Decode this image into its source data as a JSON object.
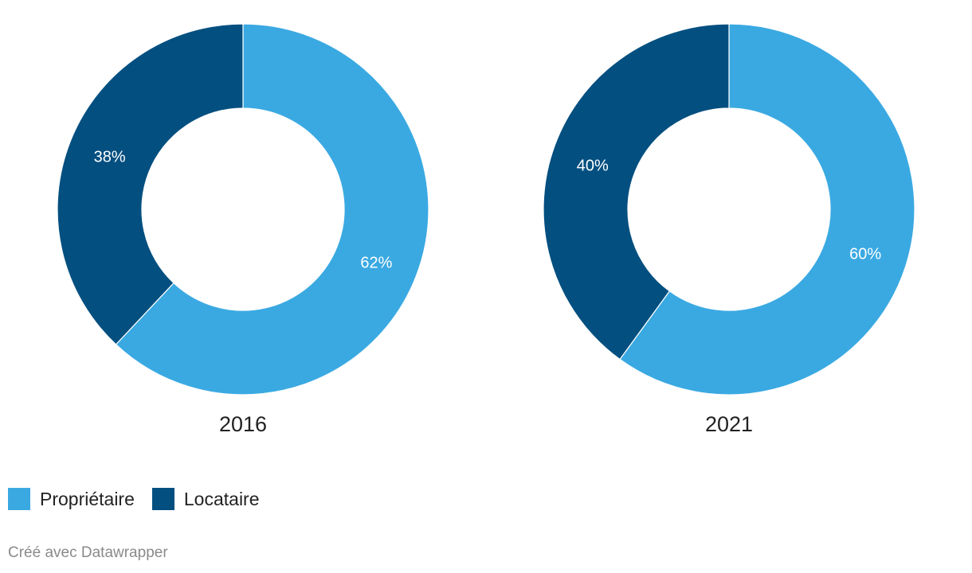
{
  "colors": {
    "proprietaire": "#3aa9e2",
    "locataire": "#034f80"
  },
  "chart_data": [
    {
      "type": "pie",
      "title": "2016",
      "slices": [
        {
          "label": "Propriétaire",
          "value": 62,
          "label_text": "62%",
          "color": "#3aa9e2"
        },
        {
          "label": "Locataire",
          "value": 38,
          "label_text": "38%",
          "color": "#034f80"
        }
      ]
    },
    {
      "type": "pie",
      "title": "2021",
      "slices": [
        {
          "label": "Propriétaire",
          "value": 60,
          "label_text": "60%",
          "color": "#3aa9e2"
        },
        {
          "label": "Locataire",
          "value": 40,
          "label_text": "40%",
          "color": "#034f80"
        }
      ]
    }
  ],
  "legend": [
    {
      "label": "Propriétaire",
      "color": "#3aa9e2"
    },
    {
      "label": "Locataire",
      "color": "#034f80"
    }
  ],
  "credit": "Créé avec Datawrapper"
}
